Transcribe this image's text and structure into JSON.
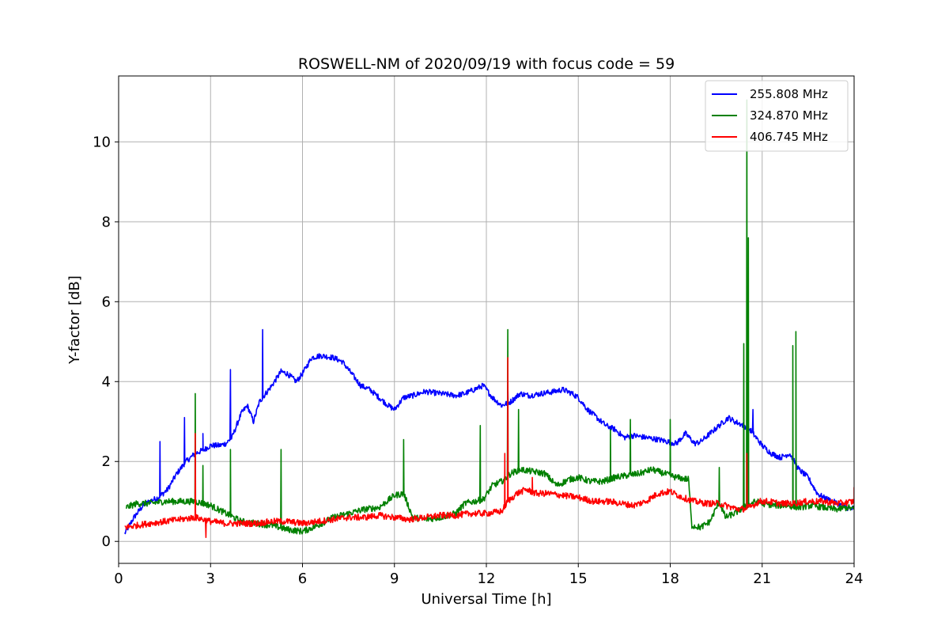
{
  "chart_data": {
    "type": "line",
    "title": "ROSWELL-NM of 2020/09/19 with focus code = 59",
    "xlabel": "Universal Time [h]",
    "ylabel": "Y-factor [dB]",
    "xlim": [
      0,
      24
    ],
    "ylim": [
      -0.55,
      11.65
    ],
    "xticks": [
      0,
      3,
      6,
      9,
      12,
      15,
      18,
      21,
      24
    ],
    "yticks": [
      0,
      2,
      4,
      6,
      8,
      10
    ],
    "xtick_labels": [
      "0",
      "3",
      "6",
      "9",
      "12",
      "15",
      "18",
      "21",
      "24"
    ],
    "ytick_labels": [
      "0",
      "2",
      "4",
      "6",
      "8",
      "10"
    ],
    "grid": true,
    "legend_position": "top-right",
    "series": [
      {
        "name": "255.808 MHz",
        "color": "#0000ff",
        "x": [
          0.2,
          0.5,
          0.8,
          1.0,
          1.3,
          1.6,
          1.9,
          2.2,
          2.5,
          2.8,
          3.0,
          3.3,
          3.5,
          3.7,
          4.0,
          4.2,
          4.4,
          4.6,
          4.8,
          5.0,
          5.3,
          5.5,
          5.8,
          6.0,
          6.3,
          6.6,
          7.0,
          7.3,
          7.6,
          7.9,
          8.2,
          8.5,
          8.8,
          9.0,
          9.3,
          9.6,
          10.0,
          10.5,
          11.0,
          11.3,
          11.6,
          11.9,
          12.2,
          12.5,
          12.8,
          13.1,
          13.4,
          13.8,
          14.2,
          14.5,
          14.8,
          15.0,
          15.3,
          15.6,
          15.9,
          16.2,
          16.5,
          16.8,
          17.2,
          17.6,
          17.9,
          18.2,
          18.5,
          18.8,
          19.0,
          19.3,
          19.6,
          19.9,
          20.1,
          20.4,
          20.6,
          20.8,
          21.0,
          21.3,
          21.6,
          21.9,
          22.2,
          22.5,
          22.8,
          23.0,
          23.3,
          23.6,
          23.9,
          24.0
        ],
        "values": [
          0.2,
          0.6,
          0.9,
          1.0,
          1.1,
          1.3,
          1.7,
          2.0,
          2.2,
          2.3,
          2.4,
          2.4,
          2.45,
          2.6,
          3.2,
          3.4,
          3.0,
          3.5,
          3.7,
          3.9,
          4.25,
          4.2,
          4.0,
          4.2,
          4.6,
          4.65,
          4.6,
          4.5,
          4.2,
          3.9,
          3.8,
          3.6,
          3.4,
          3.3,
          3.6,
          3.65,
          3.75,
          3.7,
          3.65,
          3.7,
          3.8,
          3.9,
          3.6,
          3.4,
          3.5,
          3.7,
          3.65,
          3.7,
          3.75,
          3.8,
          3.7,
          3.6,
          3.3,
          3.1,
          2.9,
          2.8,
          2.6,
          2.65,
          2.6,
          2.55,
          2.5,
          2.45,
          2.7,
          2.45,
          2.5,
          2.7,
          2.9,
          3.1,
          3.0,
          2.9,
          2.8,
          2.6,
          2.4,
          2.2,
          2.1,
          2.2,
          1.8,
          1.6,
          1.2,
          1.1,
          1.0,
          0.9,
          0.8,
          0.85
        ],
        "spikes": [
          [
            1.35,
            2.5
          ],
          [
            2.15,
            3.1
          ],
          [
            2.75,
            2.7
          ],
          [
            3.65,
            4.3
          ],
          [
            4.7,
            5.3
          ],
          [
            12.7,
            3.9
          ],
          [
            20.7,
            3.3
          ]
        ]
      },
      {
        "name": "324.870 MHz",
        "color": "#008000",
        "x": [
          0.25,
          0.6,
          1.0,
          1.5,
          2.0,
          2.5,
          3.0,
          3.5,
          4.0,
          4.5,
          5.0,
          5.5,
          6.0,
          6.5,
          7.0,
          7.5,
          8.0,
          8.5,
          9.0,
          9.3,
          9.6,
          10.0,
          10.5,
          11.0,
          11.3,
          11.6,
          11.9,
          12.2,
          12.5,
          12.8,
          13.1,
          13.5,
          13.9,
          14.3,
          14.7,
          15.0,
          15.4,
          15.8,
          16.2,
          16.6,
          17.0,
          17.4,
          17.8,
          18.2,
          18.6,
          18.7,
          19.0,
          19.3,
          19.6,
          19.8,
          20.1,
          20.5,
          20.8,
          21.0,
          21.4,
          21.8,
          22.2,
          22.6,
          23.0,
          23.4,
          23.8,
          24.0
        ],
        "values": [
          0.85,
          0.95,
          0.95,
          1.0,
          1.0,
          1.0,
          0.9,
          0.7,
          0.5,
          0.45,
          0.4,
          0.3,
          0.25,
          0.4,
          0.6,
          0.7,
          0.8,
          0.85,
          1.15,
          1.2,
          0.6,
          0.55,
          0.6,
          0.7,
          0.95,
          1.0,
          1.05,
          1.4,
          1.5,
          1.7,
          1.8,
          1.75,
          1.7,
          1.4,
          1.55,
          1.6,
          1.5,
          1.5,
          1.6,
          1.65,
          1.7,
          1.8,
          1.7,
          1.6,
          1.55,
          0.4,
          0.35,
          0.5,
          1.0,
          0.6,
          0.7,
          0.9,
          1.0,
          0.95,
          0.9,
          0.9,
          0.85,
          0.9,
          0.85,
          0.8,
          0.85,
          0.8
        ],
        "spikes": [
          [
            2.5,
            3.7
          ],
          [
            2.75,
            1.9
          ],
          [
            3.65,
            2.3
          ],
          [
            5.3,
            2.3
          ],
          [
            9.3,
            2.55
          ],
          [
            11.8,
            2.9
          ],
          [
            12.7,
            5.3
          ],
          [
            13.05,
            3.3
          ],
          [
            16.05,
            2.8
          ],
          [
            16.7,
            3.05
          ],
          [
            18.0,
            3.05
          ],
          [
            19.6,
            1.85
          ],
          [
            20.4,
            4.95
          ],
          [
            20.5,
            11.05
          ],
          [
            20.55,
            7.6
          ],
          [
            22.0,
            4.9
          ],
          [
            22.1,
            5.25
          ]
        ]
      },
      {
        "name": "406.745 MHz",
        "color": "#ff0000",
        "x": [
          0.2,
          0.6,
          1.0,
          1.5,
          2.0,
          2.5,
          3.0,
          3.5,
          4.0,
          4.5,
          5.0,
          5.5,
          6.0,
          6.5,
          7.0,
          7.5,
          8.0,
          8.5,
          9.0,
          9.5,
          10.0,
          10.5,
          11.0,
          11.5,
          12.0,
          12.5,
          12.7,
          13.0,
          13.3,
          13.6,
          14.0,
          14.5,
          15.0,
          15.5,
          16.0,
          16.4,
          16.8,
          17.2,
          17.6,
          18.0,
          18.4,
          18.8,
          19.2,
          19.6,
          20.0,
          20.3,
          20.6,
          20.9,
          21.2,
          21.6,
          22.0,
          22.5,
          23.0,
          23.5,
          24.0
        ],
        "values": [
          0.35,
          0.4,
          0.45,
          0.5,
          0.55,
          0.6,
          0.5,
          0.45,
          0.45,
          0.45,
          0.5,
          0.5,
          0.45,
          0.5,
          0.55,
          0.6,
          0.6,
          0.65,
          0.6,
          0.55,
          0.6,
          0.65,
          0.65,
          0.7,
          0.7,
          0.75,
          1.0,
          1.2,
          1.3,
          1.2,
          1.2,
          1.15,
          1.1,
          1.0,
          1.0,
          0.95,
          0.9,
          1.0,
          1.2,
          1.25,
          1.1,
          1.0,
          0.95,
          0.95,
          0.85,
          0.8,
          0.85,
          1.0,
          1.0,
          0.95,
          0.95,
          1.0,
          1.0,
          0.95,
          1.0
        ],
        "spikes": [
          [
            2.5,
            2.7
          ],
          [
            2.85,
            0.1
          ],
          [
            12.6,
            2.2
          ],
          [
            12.7,
            4.6
          ],
          [
            13.5,
            1.6
          ],
          [
            20.5,
            2.2
          ],
          [
            24.0,
            1.35
          ]
        ]
      }
    ]
  }
}
